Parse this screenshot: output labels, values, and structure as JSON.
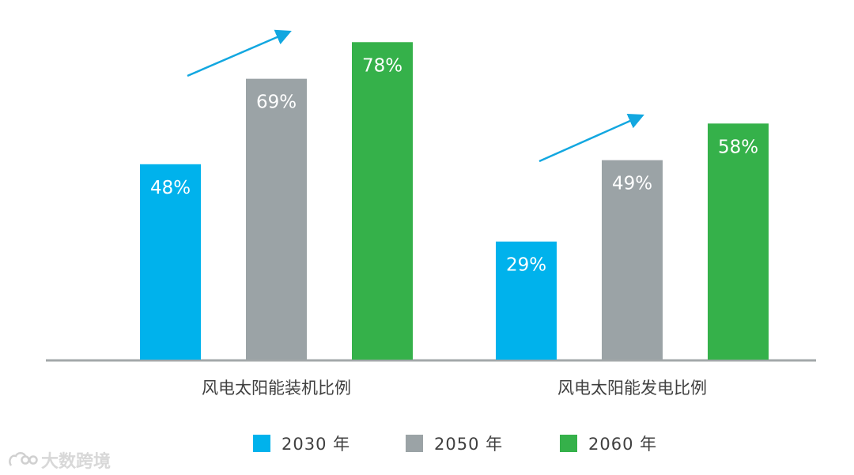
{
  "chart_data": {
    "type": "bar",
    "categories": [
      "风电太阳能装机比例",
      "风电太阳能发电比例"
    ],
    "series": [
      {
        "name": "2030 年",
        "values": [
          48,
          29
        ],
        "labels": [
          "48%",
          "29%"
        ],
        "color": "#00b2ec"
      },
      {
        "name": "2050 年",
        "values": [
          69,
          49
        ],
        "labels": [
          "69%",
          "49%"
        ],
        "color": "#9ba3a6"
      },
      {
        "name": "2060 年",
        "values": [
          78,
          58
        ],
        "labels": [
          "78%",
          "58%"
        ],
        "color": "#35b14a"
      }
    ],
    "ylim": [
      0,
      100
    ],
    "axis_color": "#a3a8aa",
    "arrow_color": "#12a7e0",
    "label_color": "#ffffff",
    "category_color": "#404040"
  },
  "watermark": {
    "text": "大数跨境"
  }
}
